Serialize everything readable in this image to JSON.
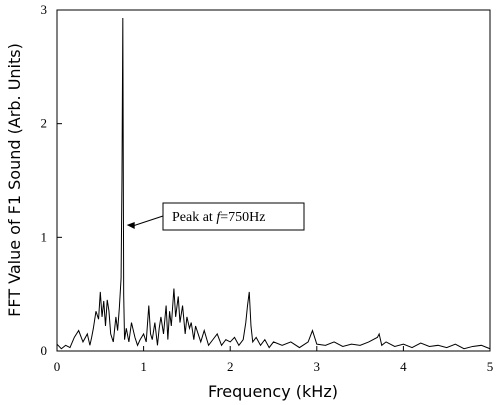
{
  "chart_data": {
    "type": "line",
    "title": "",
    "xlabel": "Frequency (kHz)",
    "ylabel": "FFT Value of F1 Sound (Arb. Units)",
    "xlim": [
      0,
      5
    ],
    "ylim": [
      0,
      3
    ],
    "xticks": [
      0,
      1,
      2,
      3,
      4,
      5
    ],
    "yticks": [
      0,
      1,
      2,
      3
    ],
    "grid": false,
    "legend": "none",
    "line_color": "#000000",
    "series": [
      {
        "x": [
          0.0,
          0.05,
          0.1,
          0.15,
          0.2,
          0.25,
          0.3,
          0.35,
          0.38,
          0.4,
          0.42,
          0.45,
          0.48,
          0.5,
          0.52,
          0.54,
          0.56,
          0.58,
          0.6,
          0.62,
          0.65,
          0.68,
          0.7,
          0.72,
          0.74,
          0.75,
          0.76,
          0.77,
          0.78,
          0.8,
          0.83,
          0.86,
          0.9,
          0.93,
          0.96,
          1.0,
          1.03,
          1.06,
          1.08,
          1.1,
          1.13,
          1.16,
          1.18,
          1.2,
          1.23,
          1.26,
          1.28,
          1.3,
          1.32,
          1.35,
          1.37,
          1.4,
          1.42,
          1.45,
          1.48,
          1.5,
          1.53,
          1.55,
          1.58,
          1.6,
          1.63,
          1.66,
          1.7,
          1.75,
          1.8,
          1.85,
          1.9,
          1.95,
          2.0,
          2.05,
          2.1,
          2.15,
          2.18,
          2.2,
          2.22,
          2.24,
          2.26,
          2.3,
          2.35,
          2.4,
          2.45,
          2.5,
          2.6,
          2.7,
          2.8,
          2.9,
          2.95,
          3.0,
          3.1,
          3.2,
          3.3,
          3.4,
          3.5,
          3.6,
          3.7,
          3.72,
          3.75,
          3.8,
          3.9,
          4.0,
          4.1,
          4.2,
          4.3,
          4.4,
          4.5,
          4.6,
          4.7,
          4.8,
          4.9,
          5.0
        ],
        "y": [
          0.06,
          0.02,
          0.05,
          0.03,
          0.12,
          0.18,
          0.08,
          0.15,
          0.05,
          0.12,
          0.2,
          0.35,
          0.28,
          0.52,
          0.3,
          0.44,
          0.22,
          0.45,
          0.35,
          0.15,
          0.08,
          0.3,
          0.18,
          0.38,
          0.64,
          1.5,
          2.93,
          0.5,
          0.1,
          0.2,
          0.08,
          0.25,
          0.12,
          0.05,
          0.1,
          0.15,
          0.08,
          0.4,
          0.15,
          0.1,
          0.25,
          0.05,
          0.2,
          0.3,
          0.15,
          0.4,
          0.1,
          0.35,
          0.22,
          0.55,
          0.3,
          0.48,
          0.25,
          0.4,
          0.15,
          0.3,
          0.2,
          0.25,
          0.1,
          0.22,
          0.15,
          0.08,
          0.18,
          0.05,
          0.1,
          0.15,
          0.05,
          0.1,
          0.08,
          0.12,
          0.05,
          0.1,
          0.25,
          0.4,
          0.52,
          0.22,
          0.08,
          0.12,
          0.05,
          0.1,
          0.03,
          0.08,
          0.05,
          0.08,
          0.03,
          0.08,
          0.18,
          0.06,
          0.05,
          0.08,
          0.04,
          0.06,
          0.05,
          0.08,
          0.12,
          0.15,
          0.05,
          0.08,
          0.04,
          0.06,
          0.03,
          0.07,
          0.04,
          0.05,
          0.03,
          0.06,
          0.02,
          0.04,
          0.05,
          0.02
        ]
      }
    ],
    "annotation": {
      "text_prefix": "Peak at ",
      "text_var": "f",
      "text_suffix": "=750Hz",
      "points_to_x": 0.77,
      "points_to_y": 1.1
    }
  }
}
